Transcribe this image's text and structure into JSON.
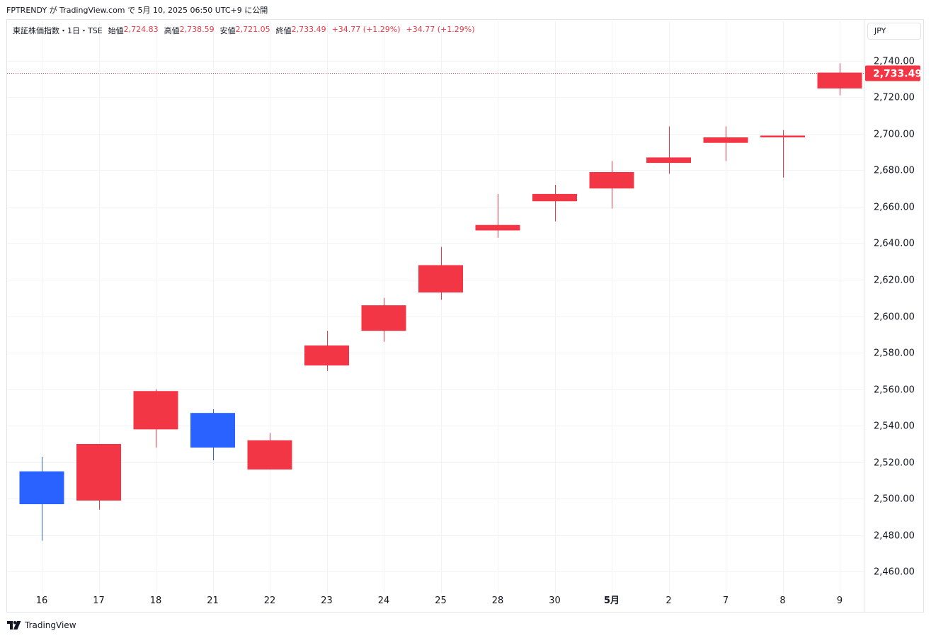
{
  "caption": "FPTRENDY が TradingView.com で 5月 10, 2025 06:50 UTC+9 に公開",
  "legend": {
    "symbol": "東証株価指数・1日・TSE",
    "open_label": "始値",
    "open": "2,724.83",
    "high_label": "高値",
    "high": "2,738.59",
    "low_label": "安値",
    "low": "2,721.05",
    "close_label": "終値",
    "close": "2,733.49",
    "change1": "+34.77 (+1.29%)",
    "change2": "+34.77 (+1.29%)"
  },
  "currency": "JPY",
  "brand": "TradingView",
  "colors": {
    "up": "#f23645",
    "down": "#2962ff",
    "grid": "#f0f3fa",
    "price_line": "#f23645"
  },
  "chart_data": {
    "type": "candlestick",
    "y_range": [
      2452,
      2750
    ],
    "y_ticks": [
      "2,460.00",
      "2,480.00",
      "2,500.00",
      "2,520.00",
      "2,540.00",
      "2,560.00",
      "2,580.00",
      "2,600.00",
      "2,620.00",
      "2,640.00",
      "2,660.00",
      "2,680.00",
      "2,700.00",
      "2,720.00",
      "2,740.00"
    ],
    "y_tick_values": [
      2460,
      2480,
      2500,
      2520,
      2540,
      2560,
      2580,
      2600,
      2620,
      2640,
      2660,
      2680,
      2700,
      2720,
      2740
    ],
    "last_price": 2733.49,
    "last_price_label": "2,733.49",
    "candles": [
      {
        "x": "16",
        "open": 2515,
        "high": 2523,
        "low": 2477,
        "close": 2497
      },
      {
        "x": "17",
        "open": 2499,
        "high": 2530,
        "low": 2494,
        "close": 2530
      },
      {
        "x": "18",
        "open": 2538,
        "high": 2560,
        "low": 2528,
        "close": 2559
      },
      {
        "x": "21",
        "open": 2547,
        "high": 2549,
        "low": 2521,
        "close": 2528
      },
      {
        "x": "22",
        "open": 2516,
        "high": 2536,
        "low": 2516,
        "close": 2532
      },
      {
        "x": "23",
        "open": 2573,
        "high": 2592,
        "low": 2570,
        "close": 2584
      },
      {
        "x": "24",
        "open": 2592,
        "high": 2610,
        "low": 2586,
        "close": 2606
      },
      {
        "x": "25",
        "open": 2613,
        "high": 2638,
        "low": 2609,
        "close": 2628
      },
      {
        "x": "28",
        "open": 2647,
        "high": 2667,
        "low": 2643,
        "close": 2650
      },
      {
        "x": "30",
        "open": 2663,
        "high": 2672,
        "low": 2652,
        "close": 2667
      },
      {
        "x": "5月",
        "open": 2670,
        "high": 2685,
        "low": 2659,
        "close": 2679
      },
      {
        "x": "2",
        "open": 2684,
        "high": 2704,
        "low": 2678,
        "close": 2687
      },
      {
        "x": "7",
        "open": 2695,
        "high": 2704,
        "low": 2685,
        "close": 2698
      },
      {
        "x": "8",
        "open": 2698,
        "high": 2702,
        "low": 2676,
        "close": 2699
      },
      {
        "x": "9",
        "open": 2724.83,
        "high": 2738.59,
        "low": 2721.05,
        "close": 2733.49
      }
    ],
    "bold_x_labels": [
      "5月"
    ]
  }
}
